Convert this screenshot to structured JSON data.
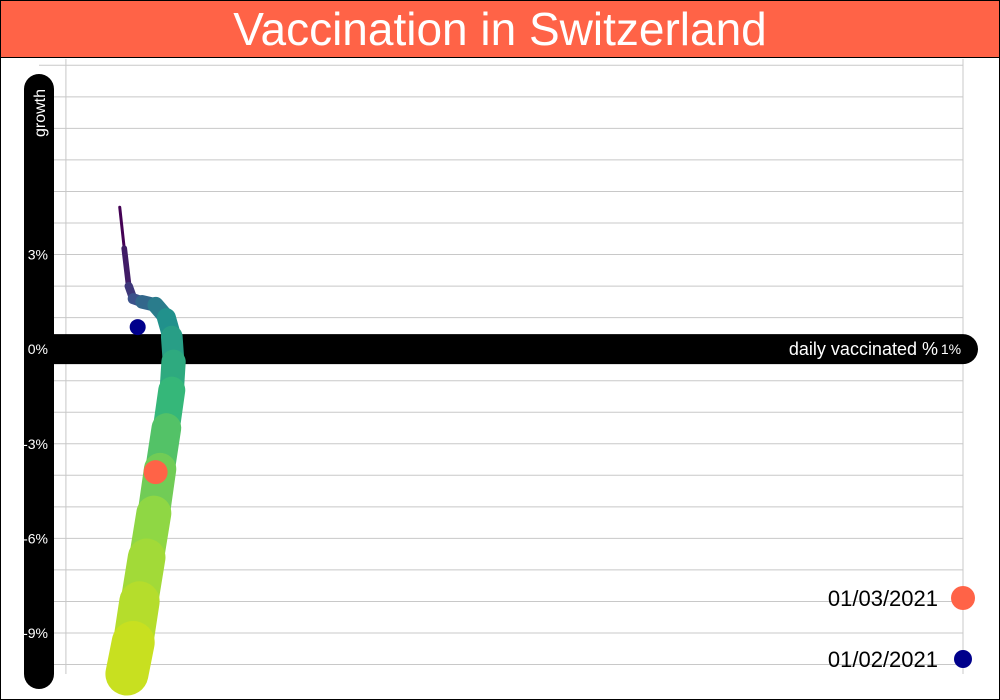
{
  "title": "Vaccination in Switzerland",
  "colors": {
    "title_bg": "#ff6347",
    "title_text": "#ffffff",
    "axis_band": "#000000",
    "grid": "#c8c8c8",
    "marker_recent": "#ff6347",
    "marker_earlier": "#00008b",
    "path_gradient": [
      "#440154",
      "#3b528b",
      "#21918c",
      "#35b779",
      "#8fd744",
      "#c8e020"
    ]
  },
  "chart_data": {
    "type": "scatter",
    "title": "Vaccination in Switzerland",
    "xlabel": "daily vaccinated %",
    "ylabel": "growth",
    "xlim": [
      -0.03,
      1.0
    ],
    "ylim": [
      -10.3,
      9.2
    ],
    "x_ticks": [
      {
        "value": 0,
        "label": "0%"
      },
      {
        "value": 1,
        "label": "1%"
      }
    ],
    "y_ticks": [
      {
        "value": 3,
        "label": "3%"
      },
      {
        "value": 0,
        "label": "0%"
      },
      {
        "value": -3,
        "label": "-3%"
      },
      {
        "value": -6,
        "label": "-6%"
      },
      {
        "value": -9,
        "label": "-9%"
      }
    ],
    "grid": true,
    "legend_position": "bottom-right",
    "series": [
      {
        "kind": "trajectory",
        "points": [
          {
            "x": 0.06,
            "y": 4.5
          },
          {
            "x": 0.065,
            "y": 3.2
          },
          {
            "x": 0.07,
            "y": 2.0
          },
          {
            "x": 0.075,
            "y": 1.6
          },
          {
            "x": 0.085,
            "y": 1.5
          },
          {
            "x": 0.1,
            "y": 1.4
          },
          {
            "x": 0.112,
            "y": 1.0
          },
          {
            "x": 0.118,
            "y": 0.4
          },
          {
            "x": 0.12,
            "y": -0.4
          },
          {
            "x": 0.118,
            "y": -1.3
          },
          {
            "x": 0.112,
            "y": -2.5
          },
          {
            "x": 0.105,
            "y": -3.8
          },
          {
            "x": 0.098,
            "y": -5.2
          },
          {
            "x": 0.09,
            "y": -6.6
          },
          {
            "x": 0.082,
            "y": -8.0
          },
          {
            "x": 0.075,
            "y": -9.3
          },
          {
            "x": 0.068,
            "y": -10.3
          }
        ]
      }
    ],
    "highlights": [
      {
        "label": "01/03/2021",
        "x": 0.1,
        "y": -3.9,
        "color": "#ff6347"
      },
      {
        "label": "01/02/2021",
        "x": 0.08,
        "y": 0.7,
        "color": "#00008b"
      }
    ]
  }
}
